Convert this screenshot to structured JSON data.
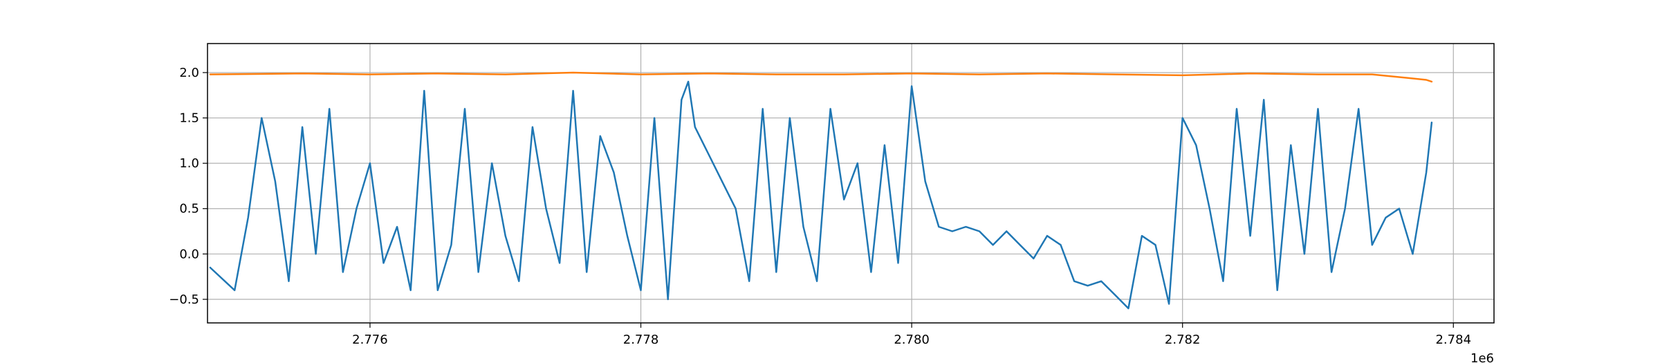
{
  "chart_data": {
    "type": "line",
    "title": "",
    "xlabel": "",
    "ylabel": "",
    "x_offset_label": "1e6",
    "xlim": [
      2774800,
      2784300
    ],
    "ylim": [
      -0.76,
      2.32
    ],
    "x_ticks": [
      2776000,
      2778000,
      2780000,
      2782000,
      2784000
    ],
    "x_tick_labels": [
      "2.776",
      "2.778",
      "2.780",
      "2.782",
      "2.784"
    ],
    "y_ticks": [
      -0.5,
      0.0,
      0.5,
      1.0,
      1.5,
      2.0
    ],
    "y_tick_labels": [
      "−0.5",
      "0.0",
      "0.5",
      "1.0",
      "1.5",
      "2.0"
    ],
    "grid": true,
    "legend": "none",
    "series": [
      {
        "color": "#1f77b4",
        "x": [
          2774820,
          2775000,
          2775100,
          2775200,
          2775300,
          2775400,
          2775500,
          2775600,
          2775700,
          2775800,
          2775900,
          2776000,
          2776100,
          2776200,
          2776300,
          2776400,
          2776500,
          2776600,
          2776700,
          2776800,
          2776900,
          2777000,
          2777100,
          2777200,
          2777300,
          2777400,
          2777500,
          2777600,
          2777700,
          2777800,
          2777900,
          2778000,
          2778100,
          2778200,
          2778300,
          2778350,
          2778400,
          2778500,
          2778600,
          2778700,
          2778800,
          2778900,
          2779000,
          2779100,
          2779200,
          2779300,
          2779400,
          2779500,
          2779600,
          2779700,
          2779800,
          2779900,
          2780000,
          2780100,
          2780200,
          2780300,
          2780400,
          2780500,
          2780600,
          2780700,
          2780800,
          2780900,
          2781000,
          2781100,
          2781200,
          2781300,
          2781400,
          2781500,
          2781600,
          2781700,
          2781800,
          2781900,
          2782000,
          2782100,
          2782200,
          2782300,
          2782400,
          2782500,
          2782600,
          2782700,
          2782800,
          2782900,
          2783000,
          2783100,
          2783200,
          2783300,
          2783400,
          2783500,
          2783600,
          2783700,
          2783800,
          2783840
        ],
        "y": [
          -0.15,
          -0.4,
          0.4,
          1.5,
          0.8,
          -0.3,
          1.4,
          0.0,
          1.6,
          -0.2,
          0.5,
          1.0,
          -0.1,
          0.3,
          -0.4,
          1.8,
          -0.4,
          0.1,
          1.6,
          -0.2,
          1.0,
          0.2,
          -0.3,
          1.4,
          0.5,
          -0.1,
          1.8,
          -0.2,
          1.3,
          0.9,
          0.2,
          -0.4,
          1.5,
          -0.5,
          1.7,
          1.9,
          1.4,
          1.1,
          0.8,
          0.5,
          -0.3,
          1.6,
          -0.2,
          1.5,
          0.3,
          -0.3,
          1.6,
          0.6,
          1.0,
          -0.2,
          1.2,
          -0.1,
          1.85,
          0.8,
          0.3,
          0.25,
          0.3,
          0.25,
          0.1,
          0.25,
          0.1,
          -0.05,
          0.2,
          0.1,
          -0.3,
          -0.35,
          -0.3,
          -0.45,
          -0.6,
          0.2,
          0.1,
          -0.55,
          1.5,
          1.2,
          0.5,
          -0.3,
          1.6,
          0.2,
          1.7,
          -0.4,
          1.2,
          0.0,
          1.6,
          -0.2,
          0.5,
          1.6,
          0.1,
          0.4,
          0.5,
          0.0,
          0.9,
          1.45
        ]
      },
      {
        "color": "#ff7f0e",
        "x": [
          2774820,
          2775500,
          2776000,
          2776500,
          2777000,
          2777500,
          2778000,
          2778500,
          2779000,
          2779500,
          2780000,
          2780500,
          2781000,
          2781500,
          2782000,
          2782500,
          2783000,
          2783400,
          2783600,
          2783800,
          2783840
        ],
        "y": [
          1.98,
          1.99,
          1.98,
          1.99,
          1.98,
          2.0,
          1.98,
          1.99,
          1.98,
          1.98,
          1.99,
          1.98,
          1.99,
          1.98,
          1.97,
          1.99,
          1.98,
          1.98,
          1.95,
          1.92,
          1.9
        ]
      }
    ]
  }
}
